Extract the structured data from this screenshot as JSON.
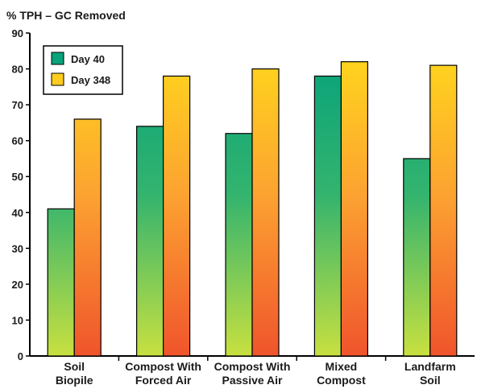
{
  "chart_data": {
    "type": "bar",
    "ylabel": "% TPH – GC Removed",
    "xlabel": "",
    "ylim": [
      0,
      90
    ],
    "yticks": [
      0,
      10,
      20,
      30,
      40,
      50,
      60,
      70,
      80,
      90
    ],
    "grid": false,
    "legend_position": "top-left",
    "categories": [
      [
        "Soil",
        "Biopile"
      ],
      [
        "Compost With",
        "Forced Air"
      ],
      [
        "Compost With",
        "Passive Air"
      ],
      [
        "Mixed",
        "Compost"
      ],
      [
        "Landfarm",
        "Soil"
      ]
    ],
    "series": [
      {
        "name": "Day 40",
        "values": [
          41,
          64,
          62,
          78,
          55
        ],
        "color_top": "#0aa37a",
        "color_mid": "#34b46e",
        "color_bottom": "#c8e040"
      },
      {
        "name": "Day 348",
        "values": [
          66,
          78,
          80,
          82,
          81
        ],
        "color_top": "#ffd21e",
        "color_mid": "#fca231",
        "color_bottom": "#f0542c"
      }
    ]
  }
}
